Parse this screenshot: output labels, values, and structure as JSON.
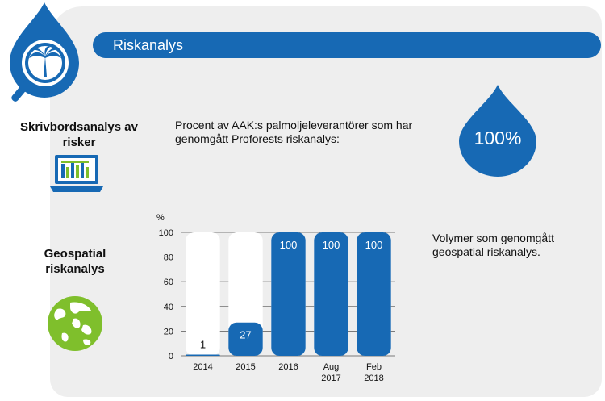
{
  "header": {
    "title": "Riskanalys"
  },
  "left": {
    "desk_label": "Skrivbordsanalys av risker",
    "geo_label": "Geospatial riskanalys"
  },
  "top_text": "Procent av AAK:s palmoljeleverantörer som har genomgått Proforests riskanalys:",
  "drop_value": "100%",
  "right_text": "Volymer som genomgått geospatial riskanalys.",
  "icons": [
    "magnifier-palm-drop-logo",
    "laptop-chart-icon",
    "globe-icon",
    "water-drop-icon"
  ],
  "colors": {
    "brand": "#1769b4",
    "globe": "#7fbf2c",
    "panel": "#eeeeee"
  },
  "chart_data": {
    "type": "bar",
    "ylabel": "%",
    "ylim": [
      0,
      100
    ],
    "yticks": [
      0,
      20,
      40,
      60,
      80,
      100
    ],
    "categories": [
      "2014",
      "2015",
      "2016",
      "Aug 2017",
      "Feb 2018"
    ],
    "values": [
      1,
      27,
      100,
      100,
      100
    ],
    "data_labels": [
      "1",
      "27",
      "100",
      "100",
      "100"
    ]
  }
}
